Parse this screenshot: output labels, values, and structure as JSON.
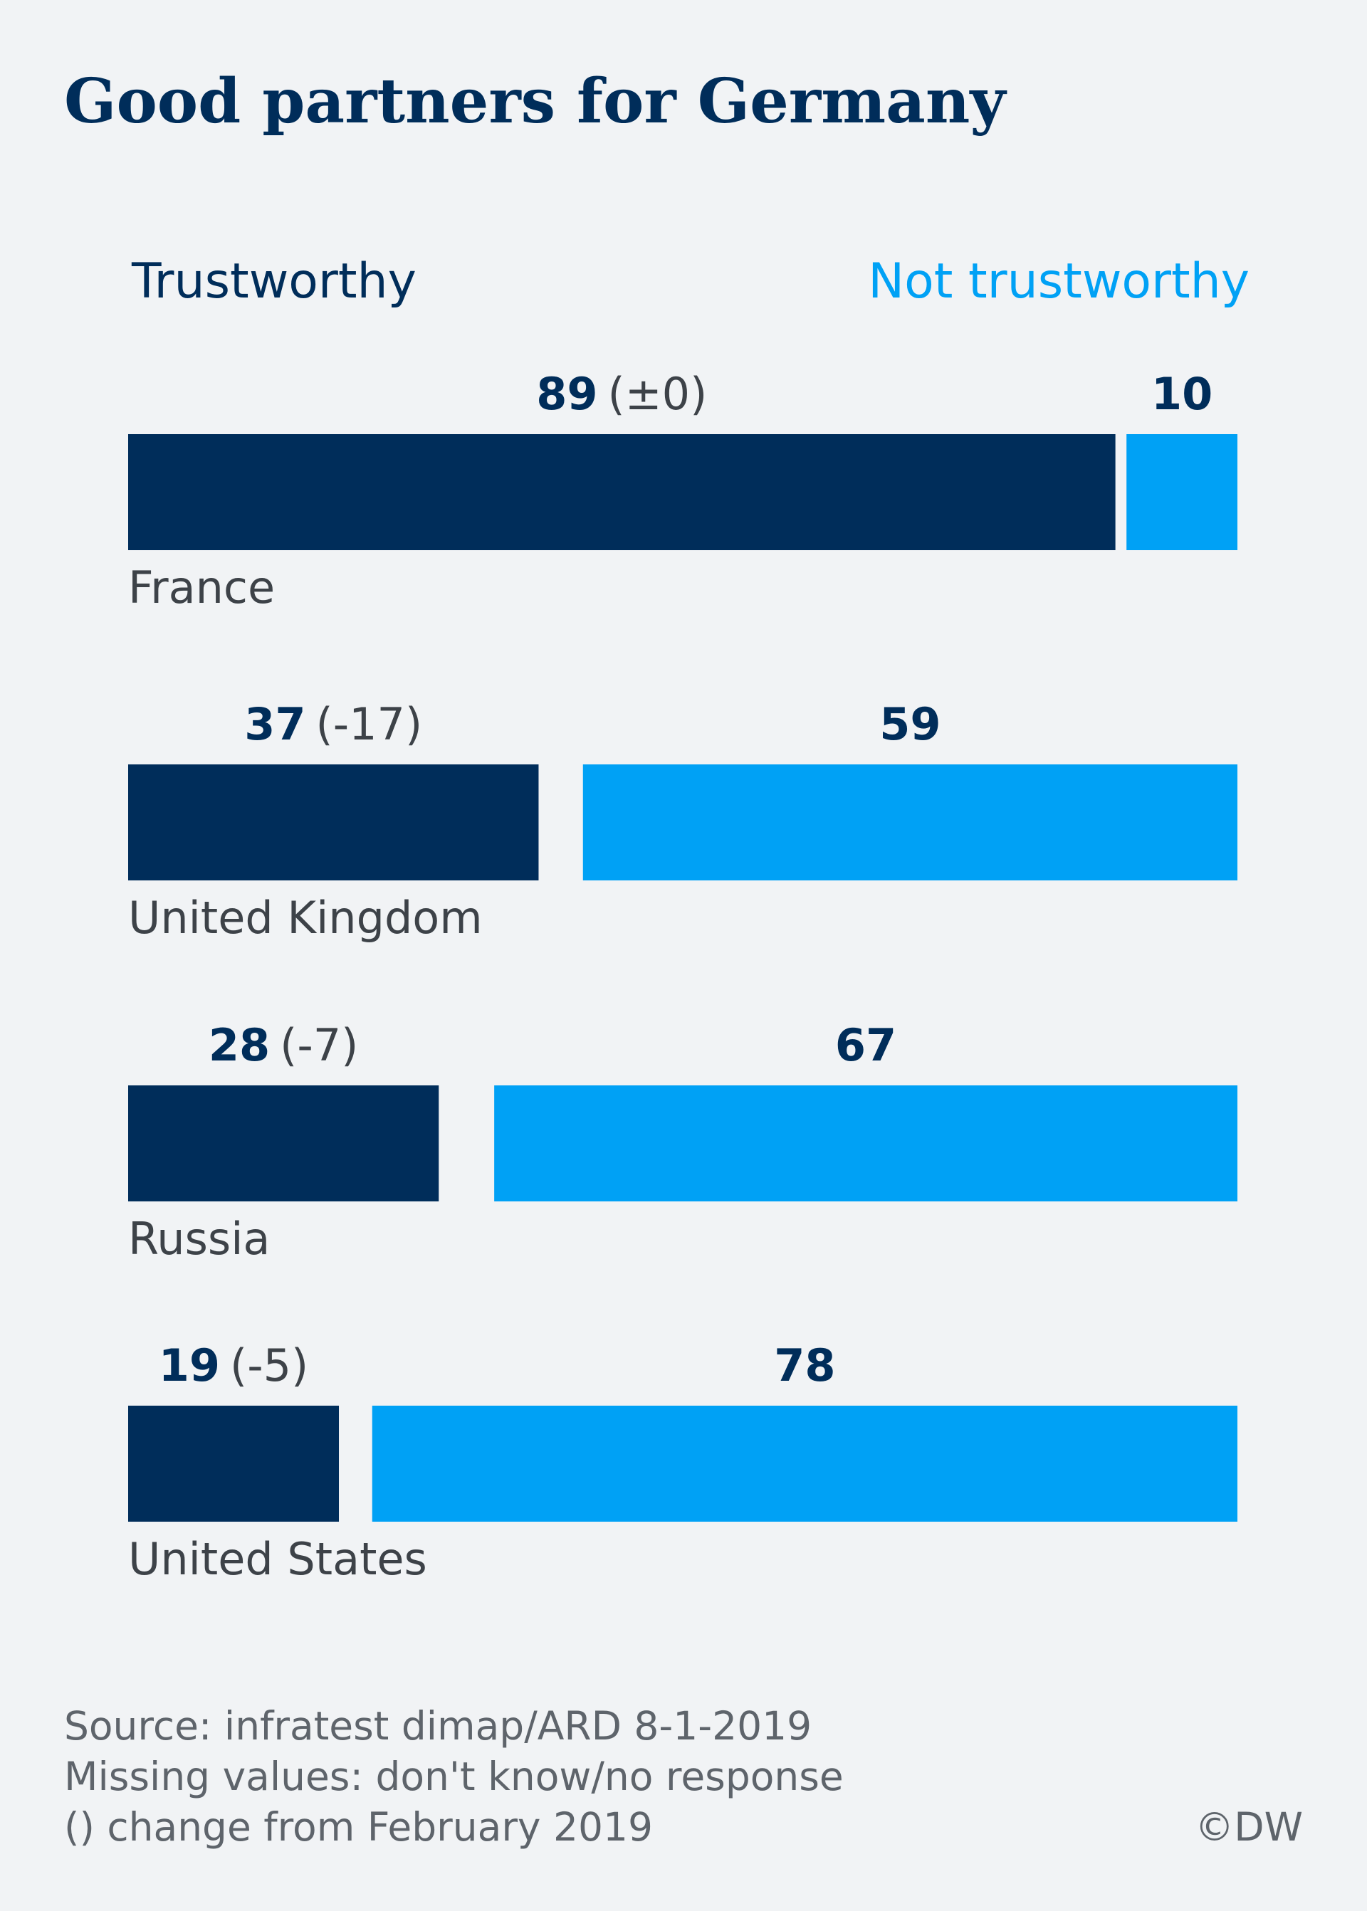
{
  "chart_data": {
    "type": "bar",
    "title": "Good partners for Germany",
    "stacked": true,
    "orientation": "horizontal",
    "categories": [
      "France",
      "United Kingdom",
      "Russia",
      "United States"
    ],
    "series": [
      {
        "name": "Trustworthy",
        "values": [
          89,
          37,
          28,
          19
        ],
        "changes": [
          "(±0)",
          "(-17)",
          "(-7)",
          "(-5)"
        ],
        "color": "#002d5a"
      },
      {
        "name": "Not trustworthy",
        "values": [
          10,
          59,
          67,
          78
        ],
        "color": "#00a1f5"
      }
    ],
    "xlim": [
      0,
      100
    ],
    "grid": false
  },
  "colors": {
    "background": "#f1f3f5",
    "title": "#002d5a",
    "trustworthy": "#002d5a",
    "not_trustworthy": "#00a1f5",
    "country_label": "#3d4248",
    "change_label": "#3d4248",
    "footer_text": "#5e646b"
  },
  "footer": {
    "source": "Source: infratest dimap/ARD 8-1-2019",
    "missing": "Missing values: don't know/no response",
    "change_note": "() change from February 2019",
    "copyright": "©DW"
  }
}
